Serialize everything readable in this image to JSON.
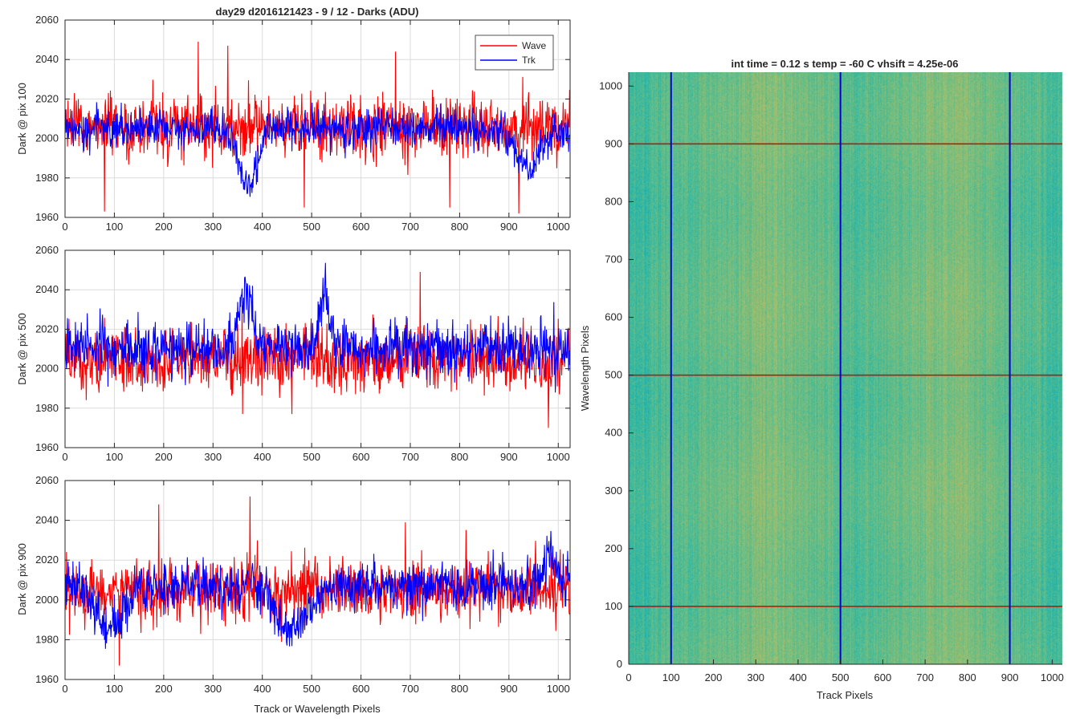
{
  "figure": {
    "title": "day29 d2016121423 - 9 / 12 - Darks (ADU)",
    "right_title": "int time = 0.12 s    temp = -60 C    vhsift = 4.25e-06"
  },
  "chart_data": [
    {
      "type": "line",
      "ylabel": "Dark @ pix 100",
      "xlim": [
        0,
        1024
      ],
      "ylim": [
        1960,
        2060
      ],
      "xticks": [
        0,
        100,
        200,
        300,
        400,
        500,
        600,
        700,
        800,
        900,
        1000
      ],
      "yticks": [
        1960,
        1980,
        2000,
        2020,
        2040,
        2060
      ],
      "grid": true,
      "legend": "top-right",
      "series": [
        {
          "name": "Wave",
          "color": "#ff0000",
          "mean": 2006,
          "std": 8,
          "spikes": [
            [
              80,
              1963
            ],
            [
              270,
              2049
            ],
            [
              330,
              2047
            ],
            [
              485,
              1965
            ],
            [
              670,
              2044
            ],
            [
              780,
              1965
            ],
            [
              920,
              1962
            ]
          ]
        },
        {
          "name": "Trk",
          "color": "#0000ff",
          "mean": 2005,
          "std": 5,
          "dips": [
            [
              370,
              1975,
              25
            ],
            [
              940,
              1985,
              35
            ]
          ]
        }
      ]
    },
    {
      "type": "line",
      "ylabel": "Dark @ pix 500",
      "xlim": [
        0,
        1024
      ],
      "ylim": [
        1960,
        2060
      ],
      "xticks": [
        0,
        100,
        200,
        300,
        400,
        500,
        600,
        700,
        800,
        900,
        1000
      ],
      "yticks": [
        1960,
        1980,
        2000,
        2020,
        2040,
        2060
      ],
      "grid": true,
      "series": [
        {
          "name": "Wave",
          "color": "#ff0000",
          "mean": 2004,
          "std": 8,
          "spikes": [
            [
              360,
              1977
            ],
            [
              460,
              1977
            ],
            [
              720,
              2049
            ],
            [
              980,
              1970
            ]
          ]
        },
        {
          "name": "Trk",
          "color": "#0000ff",
          "mean": 2010,
          "std": 7,
          "peaks": [
            [
              365,
              2046,
              20
            ],
            [
              525,
              2050,
              12
            ]
          ]
        }
      ]
    },
    {
      "type": "line",
      "ylabel": "Dark @ pix 900",
      "xlabel": "Track or Wavelength Pixels",
      "xlim": [
        0,
        1024
      ],
      "ylim": [
        1960,
        2060
      ],
      "xticks": [
        0,
        100,
        200,
        300,
        400,
        500,
        600,
        700,
        800,
        900,
        1000
      ],
      "yticks": [
        1960,
        1980,
        2000,
        2020,
        2040,
        2060
      ],
      "grid": true,
      "series": [
        {
          "name": "Wave",
          "color": "#ff0000",
          "mean": 2005,
          "std": 8,
          "spikes": [
            [
              190,
              2048
            ],
            [
              375,
              2052
            ],
            [
              110,
              1967
            ],
            [
              690,
              2039
            ]
          ]
        },
        {
          "name": "Trk",
          "color": "#0000ff",
          "mean": 2007,
          "std": 6,
          "dips": [
            [
              90,
              1985,
              40
            ],
            [
              465,
              1985,
              40
            ]
          ],
          "peaks": [
            [
              985,
              2030,
              15
            ]
          ]
        }
      ]
    },
    {
      "type": "heatmap",
      "xlabel": "Track Pixels",
      "ylabel": "Wavelength Pixels",
      "xlim": [
        0,
        1024
      ],
      "ylim": [
        0,
        1024
      ],
      "xticks": [
        0,
        100,
        200,
        300,
        400,
        500,
        600,
        700,
        800,
        900,
        1000
      ],
      "yticks": [
        0,
        100,
        200,
        300,
        400,
        500,
        600,
        700,
        800,
        900,
        1000
      ],
      "colormap": "parula",
      "vertical_lines": {
        "color": "#0000cc",
        "at": [
          100,
          500,
          900
        ]
      },
      "horizontal_lines": {
        "color": "#dd0000",
        "at": [
          100,
          500,
          900
        ]
      }
    }
  ]
}
